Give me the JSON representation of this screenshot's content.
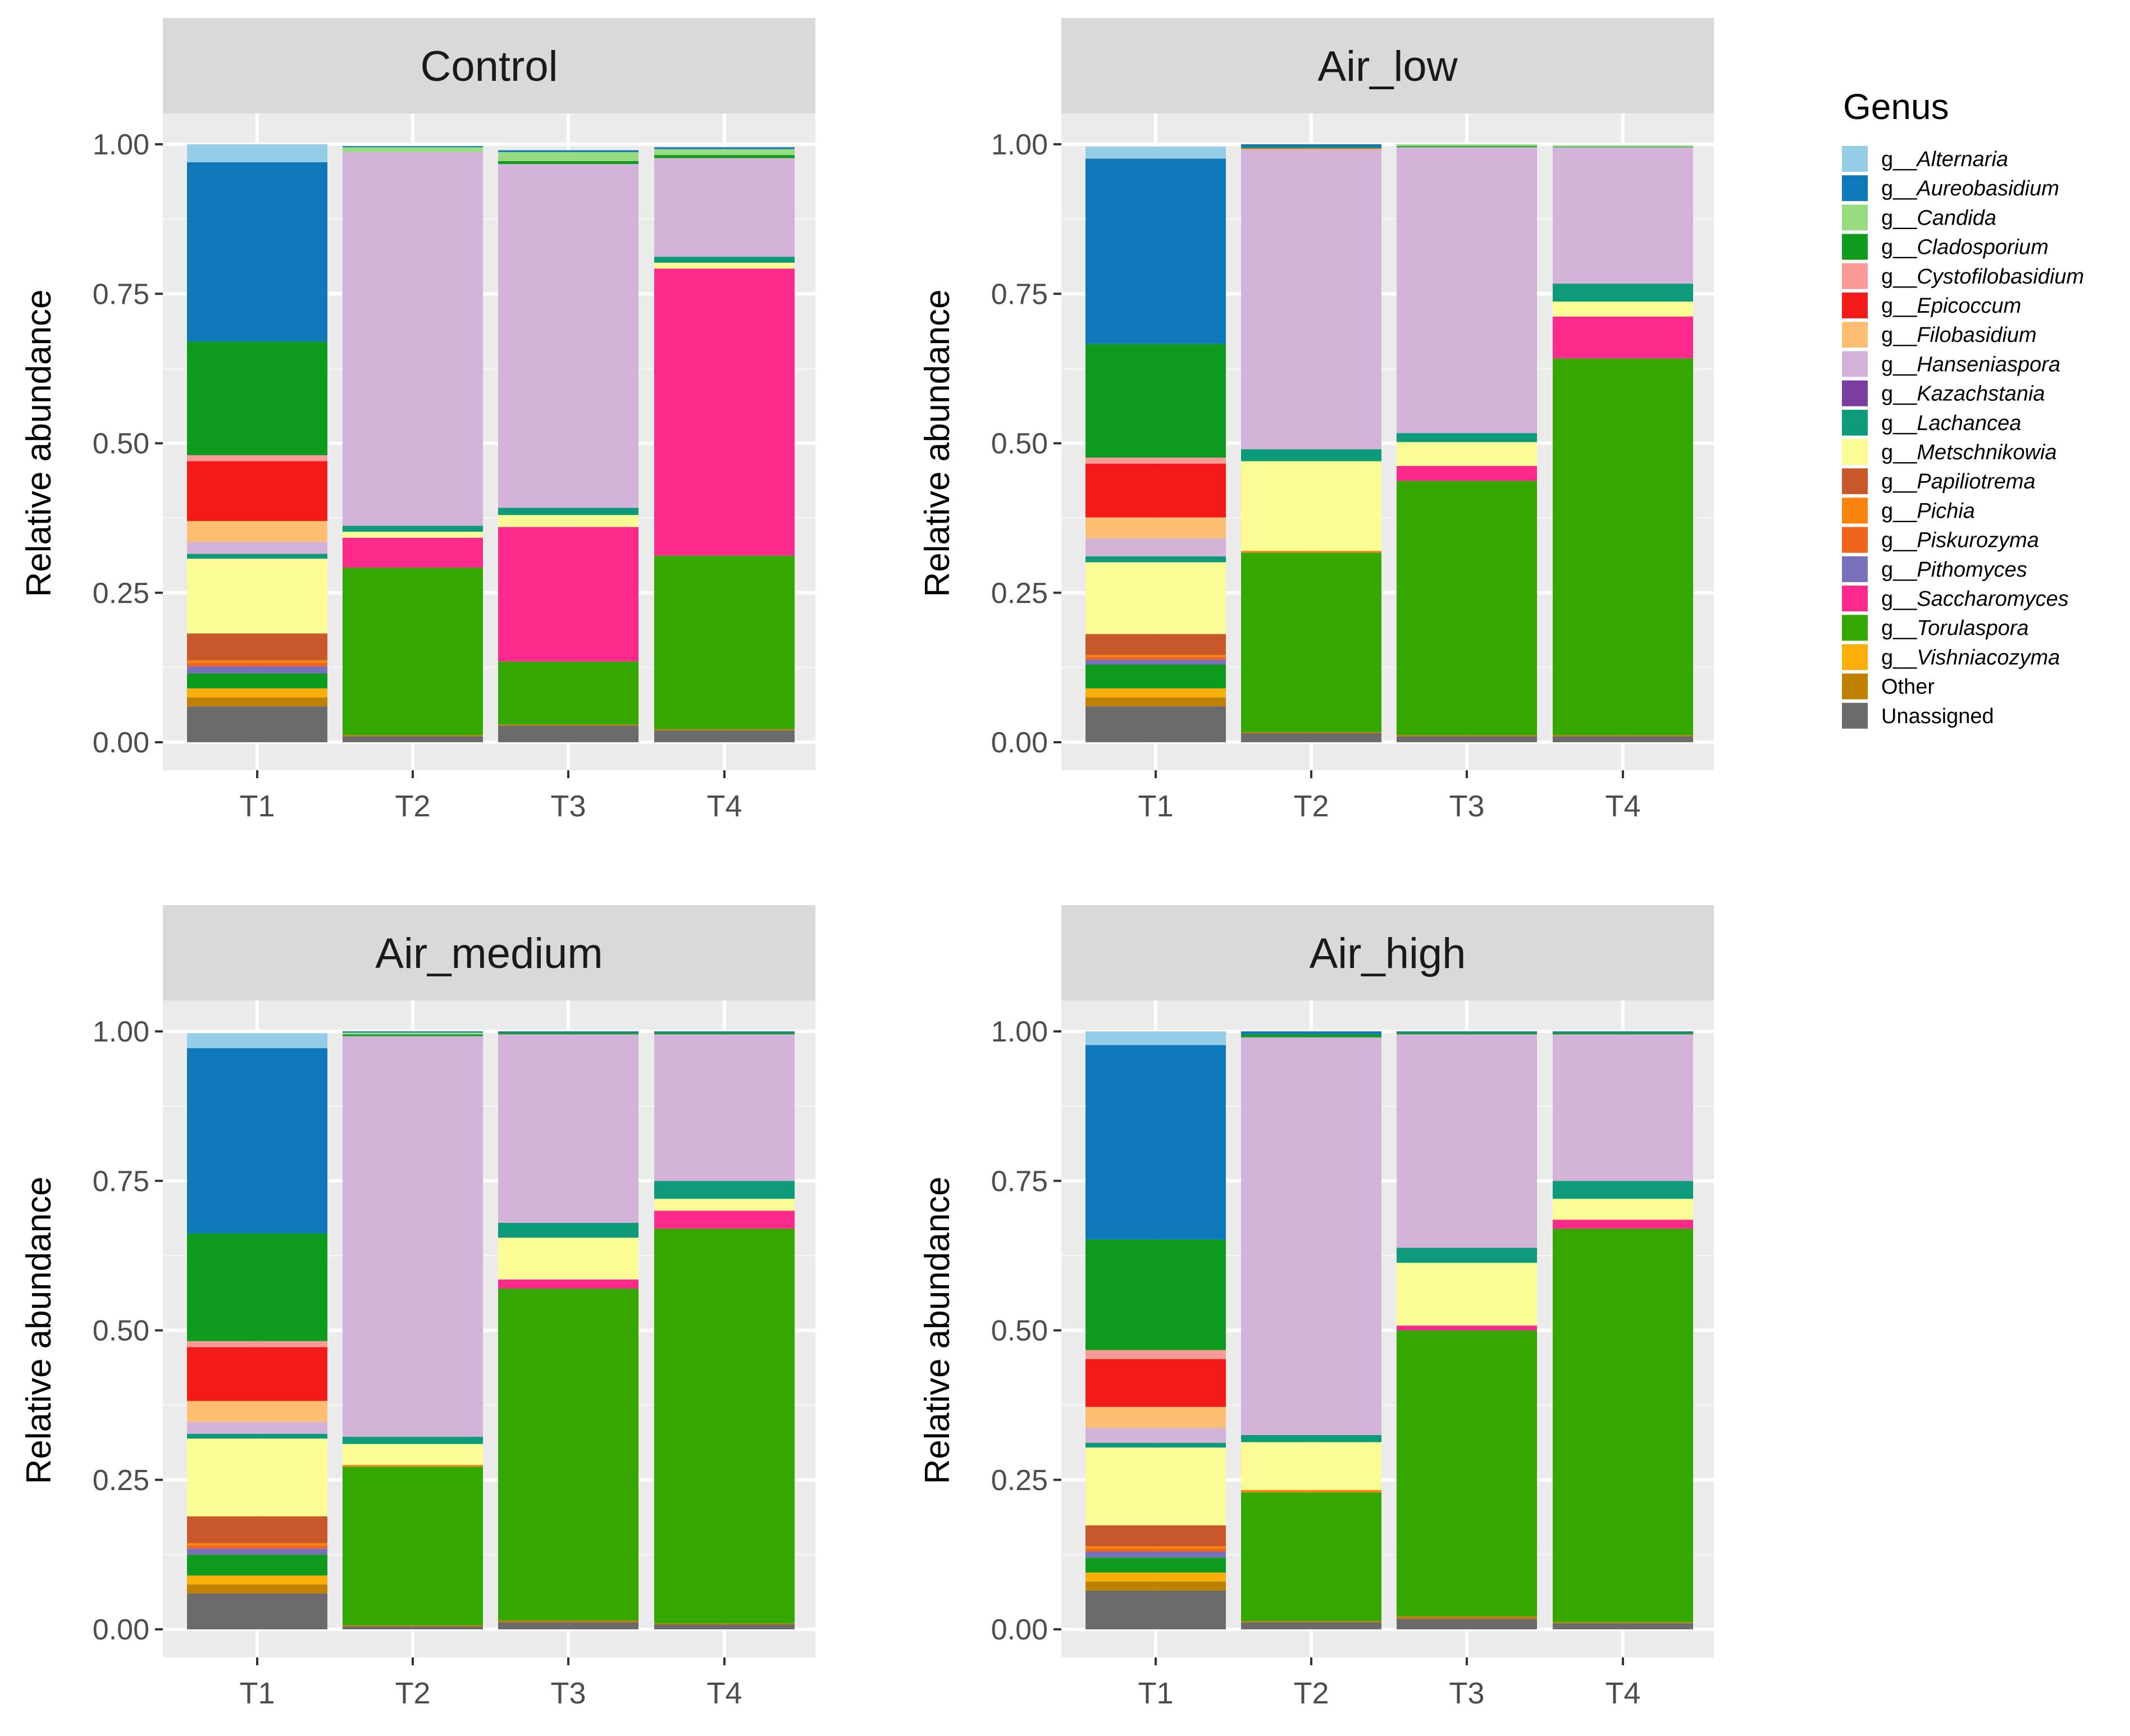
{
  "chart_data": {
    "type": "bar",
    "stacked": true,
    "facet_panels": [
      "Control",
      "Air_low",
      "Air_medium",
      "Air_high"
    ],
    "categories": [
      "T1",
      "T2",
      "T3",
      "T4"
    ],
    "ylabel": "Relative abundance",
    "xlabel": "",
    "ylim": [
      0,
      1
    ],
    "yticks": [
      "0.00",
      "0.25",
      "0.50",
      "0.75",
      "1.00"
    ],
    "legend_title": "Genus",
    "legend_position": "right",
    "genera": [
      {
        "prefix": "g__",
        "name": "Alternaria",
        "color": "#96CDE6"
      },
      {
        "prefix": "g__",
        "name": "Aureobasidium",
        "color": "#0F78B9"
      },
      {
        "prefix": "g__",
        "name": "Candida",
        "color": "#98DC82"
      },
      {
        "prefix": "g__",
        "name": "Cladosporium",
        "color": "#0F9B1E"
      },
      {
        "prefix": "g__",
        "name": "Cystofilobasidium",
        "color": "#FA9B98"
      },
      {
        "prefix": "g__",
        "name": "Epicoccum",
        "color": "#F51A1A"
      },
      {
        "prefix": "g__",
        "name": "Filobasidium",
        "color": "#FCBE73"
      },
      {
        "prefix": "g__",
        "name": "Hanseniaspora",
        "color": "#D3B3DA"
      },
      {
        "prefix": "g__",
        "name": "Kazachstania",
        "color": "#7A3DA0"
      },
      {
        "prefix": "g__",
        "name": "Lachancea",
        "color": "#0C9A78"
      },
      {
        "prefix": "g__",
        "name": "Metschnikowia",
        "color": "#FCFC96"
      },
      {
        "prefix": "g__",
        "name": "Papiliotrema",
        "color": "#C8582A"
      },
      {
        "prefix": "g__",
        "name": "Pichia",
        "color": "#FA820F"
      },
      {
        "prefix": "g__",
        "name": "Piskurozyma",
        "color": "#F0641E"
      },
      {
        "prefix": "g__",
        "name": "Pithomyces",
        "color": "#7970BB"
      },
      {
        "prefix": "g__",
        "name": "Saccharomyces",
        "color": "#FC2A8A"
      },
      {
        "prefix": "g__",
        "name": "Torulaspora",
        "color": "#34A800"
      },
      {
        "prefix": "g__",
        "name": "Vishniacozyma",
        "color": "#F9AE0A"
      },
      {
        "prefix": "",
        "name": "Other",
        "color": "#C08000"
      },
      {
        "prefix": "",
        "name": "Unassigned",
        "color": "#6B6B6B"
      }
    ],
    "stack_order_bottom_to_top": [
      "Unassigned",
      "Other",
      "Vishniacozyma",
      "Torulaspora",
      "Saccharomyces",
      "Pithomyces",
      "Piskurozyma",
      "Pichia",
      "Papiliotrema",
      "Metschnikowia",
      "Lachancea",
      "Kazachstania",
      "Hanseniaspora",
      "Filobasidium",
      "Epicoccum",
      "Cystofilobasidium",
      "Cladosporium",
      "Candida",
      "Aureobasidium",
      "Alternaria"
    ],
    "panels": [
      {
        "title": "Control",
        "bars": {
          "T1": {
            "Unassigned": 0.06,
            "Other": 0.015,
            "Vishniacozyma": 0.015,
            "Torulaspora": 0.0,
            "Cladosporium_low": 0.025,
            "Saccharomyces": 0.0,
            "Pithomyces": 0.012,
            "Piskurozyma": 0.006,
            "Pichia": 0.004,
            "Papiliotrema": 0.045,
            "Metschnikowia": 0.125,
            "Lachancea": 0.008,
            "Kazachstania": 0.0,
            "Hanseniaspora": 0.02,
            "Filobasidium": 0.035,
            "Epicoccum": 0.1,
            "Cystofilobasidium": 0.01,
            "Cladosporium": 0.19,
            "Candida": 0.0,
            "Aureobasidium": 0.3,
            "Alternaria": 0.03
          },
          "T2": {
            "Unassigned": 0.01,
            "Other": 0.002,
            "Torulaspora": 0.28,
            "Saccharomyces": 0.05,
            "Metschnikowia": 0.01,
            "Lachancea": 0.01,
            "Hanseniaspora": 0.625,
            "Candida": 0.008,
            "Aureobasidium": 0.002
          },
          "T3": {
            "Unassigned": 0.028,
            "Other": 0.002,
            "Torulaspora": 0.105,
            "Saccharomyces": 0.225,
            "Metschnikowia": 0.02,
            "Lachancea": 0.012,
            "Hanseniaspora": 0.575,
            "Candida": 0.015,
            "Cladosporium": 0.005,
            "Aureobasidium": 0.003
          },
          "T4": {
            "Unassigned": 0.02,
            "Other": 0.002,
            "Torulaspora": 0.29,
            "Saccharomyces": 0.48,
            "Metschnikowia": 0.01,
            "Lachancea": 0.01,
            "Hanseniaspora": 0.165,
            "Cladosporium": 0.005,
            "Candida": 0.01,
            "Aureobasidium": 0.003
          }
        }
      },
      {
        "title": "Air_low",
        "bars": {
          "T1": {
            "Unassigned": 0.06,
            "Other": 0.015,
            "Vishniacozyma": 0.015,
            "Cladosporium_low": 0.04,
            "Pithomyces": 0.008,
            "Piskurozyma": 0.005,
            "Pichia": 0.003,
            "Papiliotrema": 0.035,
            "Metschnikowia": 0.12,
            "Lachancea": 0.01,
            "Hanseniaspora": 0.03,
            "Filobasidium": 0.035,
            "Epicoccum": 0.09,
            "Cystofilobasidium": 0.01,
            "Cladosporium": 0.19,
            "Aureobasidium": 0.31,
            "Alternaria": 0.02
          },
          "T2": {
            "Unassigned": 0.015,
            "Other": 0.002,
            "Torulaspora": 0.3,
            "Pichia": 0.003,
            "Metschnikowia": 0.15,
            "Lachancea": 0.02,
            "Hanseniaspora": 0.5,
            "Cystofilobasidium": 0.003,
            "Cladosporium": 0.002,
            "Aureobasidium": 0.005
          },
          "T3": {
            "Unassigned": 0.01,
            "Other": 0.002,
            "Torulaspora": 0.425,
            "Saccharomyces": 0.025,
            "Metschnikowia": 0.04,
            "Lachancea": 0.015,
            "Hanseniaspora": 0.478,
            "Candida": 0.003,
            "Cladosporium": 0.002
          },
          "T4": {
            "Unassigned": 0.01,
            "Other": 0.002,
            "Torulaspora": 0.63,
            "Saccharomyces": 0.07,
            "Metschnikowia": 0.025,
            "Lachancea": 0.03,
            "Hanseniaspora": 0.228,
            "Candida": 0.002,
            "Cladosporium": 0.001
          }
        }
      },
      {
        "title": "Air_medium",
        "bars": {
          "T1": {
            "Unassigned": 0.06,
            "Other": 0.015,
            "Vishniacozyma": 0.015,
            "Cladosporium_low": 0.035,
            "Pithomyces": 0.01,
            "Piskurozyma": 0.005,
            "Pichia": 0.004,
            "Papiliotrema": 0.045,
            "Metschnikowia": 0.13,
            "Lachancea": 0.008,
            "Hanseniaspora": 0.02,
            "Filobasidium": 0.035,
            "Epicoccum": 0.09,
            "Cystofilobasidium": 0.01,
            "Cladosporium": 0.18,
            "Aureobasidium": 0.31,
            "Alternaria": 0.025
          },
          "T2": {
            "Unassigned": 0.005,
            "Other": 0.002,
            "Torulaspora": 0.265,
            "Pichia": 0.003,
            "Metschnikowia": 0.035,
            "Lachancea": 0.012,
            "Hanseniaspora": 0.67,
            "Candida": 0.003,
            "Cladosporium": 0.003,
            "Aureobasidium": 0.002
          },
          "T3": {
            "Unassigned": 0.012,
            "Other": 0.003,
            "Torulaspora": 0.555,
            "Saccharomyces": 0.015,
            "Metschnikowia": 0.07,
            "Lachancea": 0.025,
            "Hanseniaspora": 0.315,
            "Cladosporium": 0.003,
            "Aureobasidium": 0.002
          },
          "T4": {
            "Unassigned": 0.008,
            "Other": 0.002,
            "Torulaspora": 0.66,
            "Saccharomyces": 0.03,
            "Metschnikowia": 0.02,
            "Lachancea": 0.03,
            "Hanseniaspora": 0.245,
            "Cladosporium": 0.003,
            "Aureobasidium": 0.002
          }
        }
      },
      {
        "title": "Air_high",
        "bars": {
          "T1": {
            "Unassigned": 0.065,
            "Other": 0.015,
            "Vishniacozyma": 0.015,
            "Cladosporium_low": 0.025,
            "Pithomyces": 0.01,
            "Piskurozyma": 0.005,
            "Pichia": 0.004,
            "Papiliotrema": 0.035,
            "Metschnikowia": 0.13,
            "Lachancea": 0.008,
            "Hanseniaspora": 0.025,
            "Filobasidium": 0.035,
            "Epicoccum": 0.08,
            "Cystofilobasidium": 0.015,
            "Cladosporium": 0.185,
            "Aureobasidium": 0.325,
            "Alternaria": 0.023
          },
          "T2": {
            "Unassigned": 0.012,
            "Other": 0.002,
            "Torulaspora": 0.215,
            "Pichia": 0.004,
            "Metschnikowia": 0.08,
            "Lachancea": 0.012,
            "Hanseniaspora": 0.665,
            "Cladosporium": 0.005,
            "Aureobasidium": 0.005
          },
          "T3": {
            "Unassigned": 0.018,
            "Other": 0.004,
            "Torulaspora": 0.478,
            "Saccharomyces": 0.008,
            "Metschnikowia": 0.105,
            "Lachancea": 0.025,
            "Hanseniaspora": 0.357,
            "Cladosporium": 0.003,
            "Aureobasidium": 0.002
          },
          "T4": {
            "Unassigned": 0.01,
            "Other": 0.002,
            "Torulaspora": 0.658,
            "Saccharomyces": 0.015,
            "Metschnikowia": 0.035,
            "Lachancea": 0.03,
            "Hanseniaspora": 0.245,
            "Cladosporium": 0.003,
            "Aureobasidium": 0.002
          }
        }
      }
    ]
  }
}
